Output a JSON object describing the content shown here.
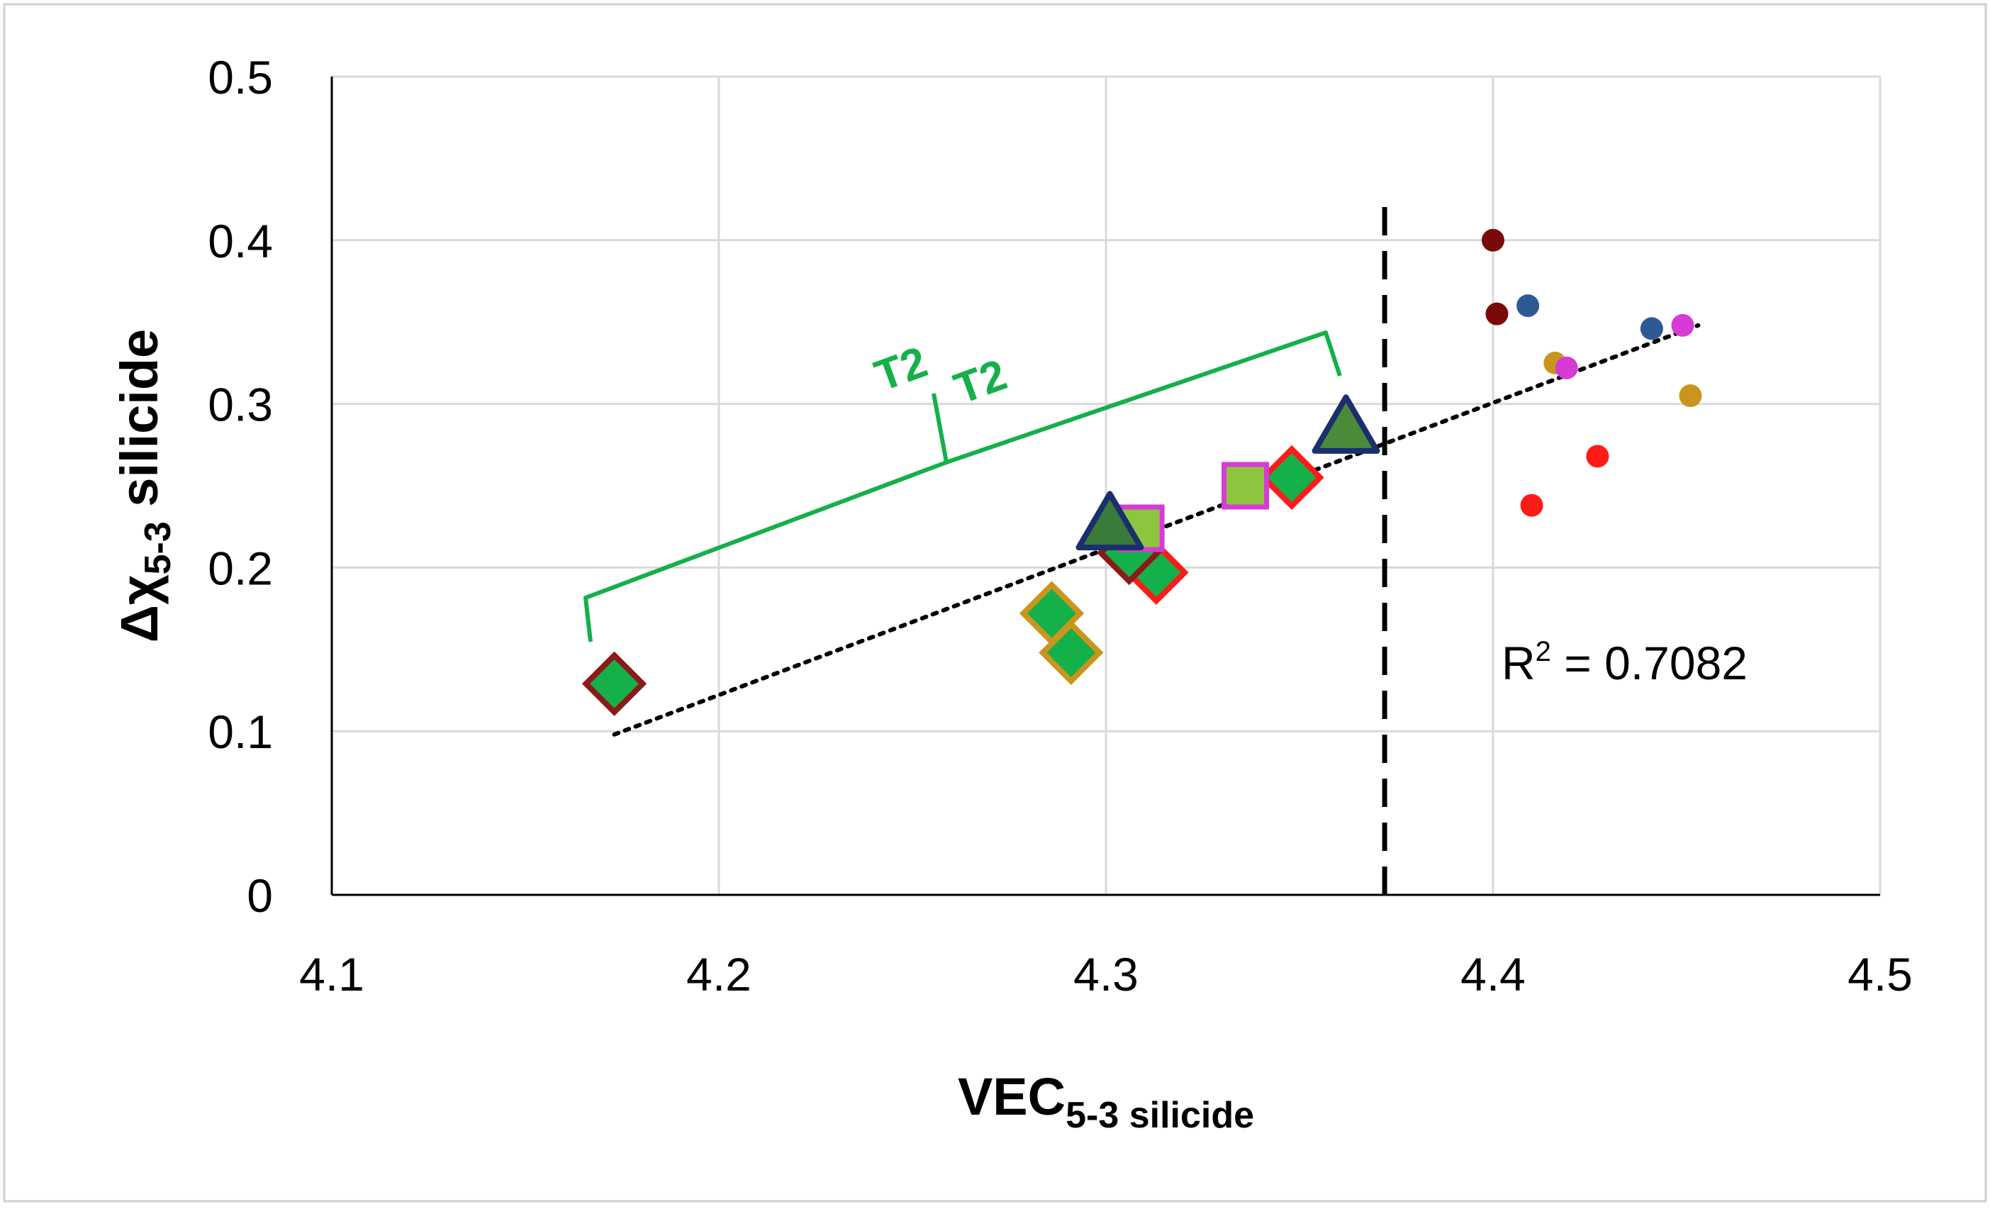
{
  "chart_data": {
    "type": "scatter",
    "title": "",
    "xlabel": {
      "main": "VEC",
      "sub": "5-3 silicide"
    },
    "ylabel": {
      "main": "Δχ",
      "sub": "5-3",
      "suffix": " silicide"
    },
    "xlim": [
      4.1,
      4.5
    ],
    "ylim": [
      0,
      0.5
    ],
    "x_ticks": [
      "4.1",
      "4.2",
      "4.3",
      "4.4",
      "4.5"
    ],
    "y_ticks": [
      "0",
      "0.1",
      "0.2",
      "0.3",
      "0.4",
      "0.5"
    ],
    "grid": true,
    "legend": "none",
    "threshold_line": {
      "x": 4.372,
      "style": "dashed",
      "color": "#000000"
    },
    "trendline": {
      "style": "dotted",
      "color": "#000000",
      "from": [
        4.173,
        0.098
      ],
      "to": [
        4.453,
        0.348
      ]
    },
    "r_squared": {
      "prefix": "R",
      "sup": "2",
      "text": " = 0.7082"
    },
    "bracket": {
      "label_a": "T2",
      "label_b": "T2",
      "color": "#14b04a"
    },
    "series": [
      {
        "marker": "diamond",
        "points": [
          {
            "x": 4.173,
            "y": 0.129,
            "fill": "#14b04a",
            "stroke": "#8b1a1a"
          },
          {
            "x": 4.286,
            "y": 0.172,
            "fill": "#14b04a",
            "stroke": "#c8961e"
          },
          {
            "x": 4.291,
            "y": 0.148,
            "fill": "#14b04a",
            "stroke": "#c8961e"
          },
          {
            "x": 4.313,
            "y": 0.197,
            "fill": "#14b04a",
            "stroke": "#ff1a1a"
          },
          {
            "x": 4.306,
            "y": 0.209,
            "fill": "#14b04a",
            "stroke": "#8b1a1a"
          },
          {
            "x": 4.348,
            "y": 0.255,
            "fill": "#14b04a",
            "stroke": "#ff1a1a"
          }
        ]
      },
      {
        "marker": "square",
        "points": [
          {
            "x": 4.309,
            "y": 0.224,
            "fill": "#8cc63f",
            "stroke": "#d63bd6"
          },
          {
            "x": 4.336,
            "y": 0.25,
            "fill": "#8cc63f",
            "stroke": "#d63bd6"
          }
        ]
      },
      {
        "marker": "triangle",
        "points": [
          {
            "x": 4.301,
            "y": 0.226,
            "fill": "#3a7a3a",
            "stroke": "#1a2f6b"
          },
          {
            "x": 4.362,
            "y": 0.285,
            "fill": "#4a8a3a",
            "stroke": "#1a2f6b"
          }
        ]
      },
      {
        "marker": "circle",
        "points": [
          {
            "x": 4.4,
            "y": 0.4,
            "fill": "#7a0a0a"
          },
          {
            "x": 4.401,
            "y": 0.355,
            "fill": "#7a0a0a"
          },
          {
            "x": 4.409,
            "y": 0.36,
            "fill": "#2e5a94"
          },
          {
            "x": 4.441,
            "y": 0.346,
            "fill": "#2e5a94"
          },
          {
            "x": 4.416,
            "y": 0.325,
            "fill": "#c8961e"
          },
          {
            "x": 4.451,
            "y": 0.305,
            "fill": "#c8961e"
          },
          {
            "x": 4.419,
            "y": 0.322,
            "fill": "#d63bd6"
          },
          {
            "x": 4.449,
            "y": 0.348,
            "fill": "#d63bd6"
          },
          {
            "x": 4.41,
            "y": 0.238,
            "fill": "#ff1a1a"
          },
          {
            "x": 4.427,
            "y": 0.268,
            "fill": "#ff1a1a"
          }
        ]
      }
    ]
  }
}
